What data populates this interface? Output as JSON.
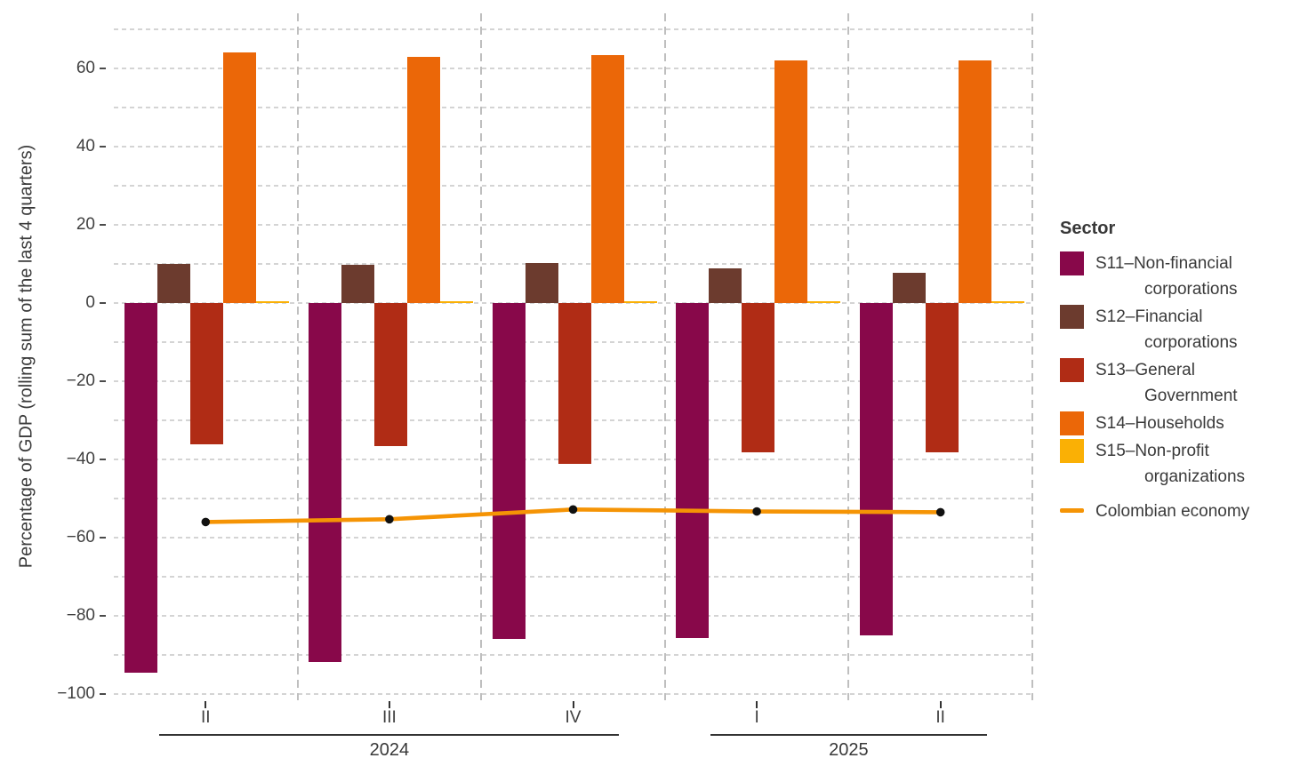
{
  "chart_data": {
    "type": "bar",
    "title": "",
    "ylabel": "Percentage of GDP (rolling sum of the last 4 quarters)",
    "categories": [
      "II",
      "III",
      "IV",
      "I",
      "II"
    ],
    "year_groups": [
      {
        "label": "2024",
        "from": 0,
        "to": 2
      },
      {
        "label": "2025",
        "from": 3,
        "to": 4
      }
    ],
    "ylim": [
      -100,
      70
    ],
    "grid": "dashed",
    "y_axis": {
      "grid_step": 10,
      "grid_max": 70,
      "grid_min": -100,
      "labeled_values": [
        60,
        40,
        20,
        0,
        -20,
        -40,
        -60,
        -80,
        -100
      ],
      "labels": [
        "60",
        "40",
        "20",
        "0",
        "−20",
        "−40",
        "−60",
        "−80",
        "−100"
      ]
    },
    "series": [
      {
        "id": "S11",
        "name": "S11–Non-financial corporations",
        "color": "#88084A",
        "values": [
          -94.5,
          -91.8,
          -85.9,
          -85.7,
          -85.0
        ]
      },
      {
        "id": "S12",
        "name": "S12–Financial corporations",
        "color": "#6C3B2E",
        "values": [
          10.0,
          9.7,
          10.3,
          8.8,
          7.8
        ]
      },
      {
        "id": "S13",
        "name": "S13–General Government",
        "color": "#B02C15",
        "values": [
          -36.1,
          -36.6,
          -41.1,
          -38.1,
          -38.1
        ]
      },
      {
        "id": "S14",
        "name": "S14–Households",
        "color": "#EB6708",
        "values": [
          64.0,
          63.0,
          63.5,
          62.0,
          62.0
        ]
      },
      {
        "id": "S15",
        "name": "S15–Non-profit organizations",
        "color": "#FAB005",
        "values": [
          0.4,
          0.4,
          0.4,
          0.4,
          0.4
        ]
      }
    ],
    "line_series": {
      "name": "Colombian economy",
      "color": "#F59405",
      "point_color": "#111111",
      "values": [
        -56.0,
        -55.3,
        -52.8,
        -53.3,
        -53.5
      ]
    },
    "legend_position": "right"
  },
  "legend": {
    "title": "Sector"
  }
}
